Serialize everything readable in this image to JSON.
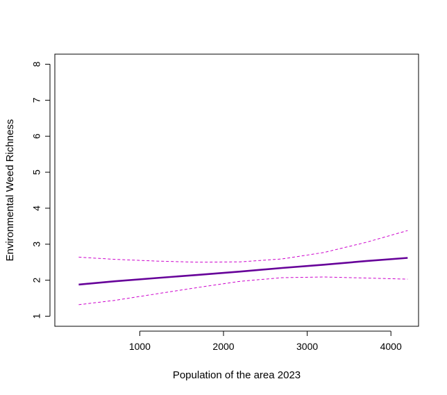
{
  "chart_data": {
    "type": "line",
    "title": "",
    "xlabel": "Population of the area 2023",
    "ylabel": "Environmental Weed Richness",
    "xlim": [
      -15,
      4330
    ],
    "ylim": [
      0.72,
      8.28
    ],
    "xticks": [
      1000,
      2000,
      3000,
      4000
    ],
    "yticks": [
      1,
      2,
      3,
      4,
      5,
      6,
      7,
      8
    ],
    "grid": false,
    "legend": "none",
    "series": [
      {
        "style": "solid",
        "color": "#660099",
        "x": [
          270,
          700,
          1200,
          1700,
          2200,
          2700,
          3200,
          3700,
          4200
        ],
        "y": [
          1.88,
          1.97,
          2.06,
          2.15,
          2.24,
          2.34,
          2.43,
          2.53,
          2.62
        ]
      },
      {
        "style": "dashed",
        "color": "#cc00cc",
        "x": [
          270,
          700,
          1200,
          1700,
          2200,
          2700,
          3200,
          3700,
          4200
        ],
        "y": [
          2.64,
          2.58,
          2.53,
          2.5,
          2.51,
          2.59,
          2.77,
          3.05,
          3.38
        ]
      },
      {
        "style": "dashed",
        "color": "#cc00cc",
        "x": [
          270,
          700,
          1200,
          1700,
          2200,
          2700,
          3200,
          3700,
          4200
        ],
        "y": [
          1.32,
          1.44,
          1.62,
          1.8,
          1.97,
          2.07,
          2.09,
          2.06,
          2.03
        ]
      }
    ]
  }
}
